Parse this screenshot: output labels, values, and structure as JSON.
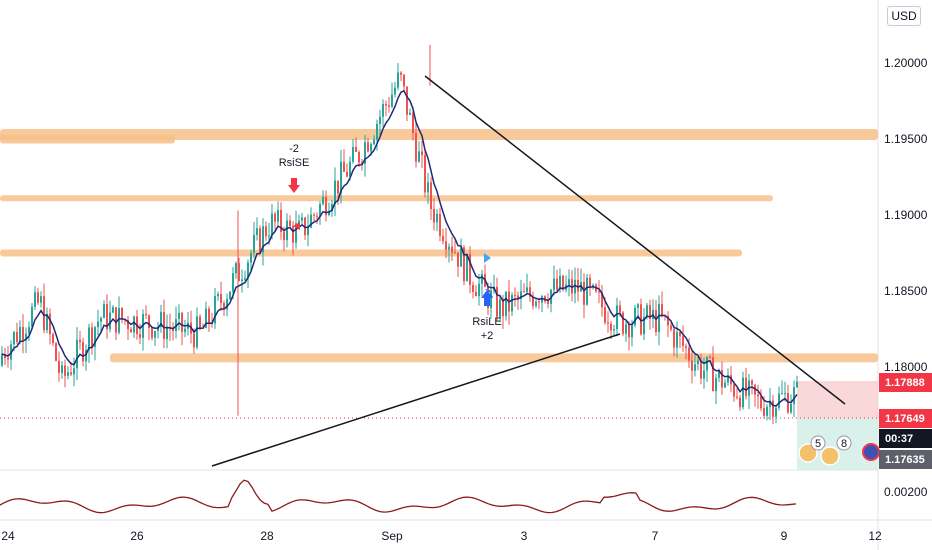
{
  "currency_button": "USD",
  "chart_data": {
    "type": "candlestick",
    "symbol_currency": "USD",
    "x_ticks": [
      "24",
      "26",
      "28",
      "Sep",
      "3",
      "7",
      "9",
      "12"
    ],
    "y_ticks": [
      "1.20000",
      "1.19500",
      "1.19000",
      "1.18500",
      "1.18000"
    ],
    "ylim": [
      1.1755,
      1.2012
    ],
    "oscillator_tick": "0.00200",
    "price_badges": [
      {
        "label": "1.17888",
        "color": "#f23645"
      },
      {
        "label": "1.17649",
        "color": "#f23645"
      },
      {
        "label": "00:37",
        "color": "#131722"
      },
      {
        "label": "1.17635",
        "color": "#5d606b"
      }
    ],
    "partial_price_label": "1.",
    "signals": [
      {
        "side": "sell",
        "name": "RsiSE",
        "qty": "-2"
      },
      {
        "side": "buy",
        "name": "RsiLE",
        "qty": "+2"
      }
    ],
    "event_counts": [
      "5",
      "8"
    ],
    "resistance_levels": [
      1.1953,
      1.195,
      1.1911,
      1.1875,
      1.1806
    ],
    "trendlines": [
      {
        "from": [
          "Aug 31",
          1.199
        ],
        "to": [
          "Sep 10",
          1.1767
        ]
      },
      {
        "from": [
          "Aug 27",
          1.1744
        ],
        "to": [
          "Sep 6",
          1.1821
        ]
      }
    ],
    "candles_sample": [
      [
        1.1801,
        1.1812,
        1.1793,
        1.1807
      ],
      [
        1.1807,
        1.1849,
        1.18,
        1.1843
      ],
      [
        1.1843,
        1.1846,
        1.1786,
        1.1791
      ],
      [
        1.1791,
        1.1838,
        1.1785,
        1.1833
      ],
      [
        1.1833,
        1.1841,
        1.1817,
        1.183
      ],
      [
        1.183,
        1.1848,
        1.178,
        1.1822
      ],
      [
        1.1822,
        1.1907,
        1.182,
        1.1895
      ],
      [
        1.1895,
        1.1902,
        1.187,
        1.1888
      ],
      [
        1.1888,
        1.1965,
        1.1885,
        1.1941
      ],
      [
        1.1941,
        1.2012,
        1.1936,
        1.199
      ],
      [
        1.199,
        1.1992,
        1.1915,
        1.1907
      ],
      [
        1.1907,
        1.1913,
        1.1848,
        1.186
      ],
      [
        1.186,
        1.1856,
        1.18,
        1.1838
      ],
      [
        1.1838,
        1.1865,
        1.1796,
        1.185
      ],
      [
        1.185,
        1.1863,
        1.183,
        1.1852
      ],
      [
        1.1852,
        1.1858,
        1.179,
        1.183
      ],
      [
        1.183,
        1.1846,
        1.1815,
        1.1832
      ],
      [
        1.1832,
        1.1838,
        1.1785,
        1.18
      ],
      [
        1.18,
        1.1812,
        1.1768,
        1.1776
      ],
      [
        1.1776,
        1.1791,
        1.177,
        1.1782
      ]
    ]
  }
}
